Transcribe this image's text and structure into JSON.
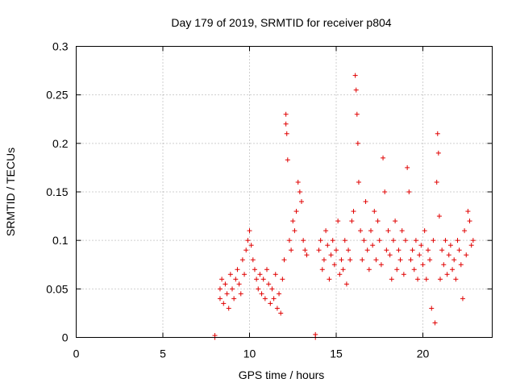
{
  "chart_data": {
    "type": "scatter",
    "title": "Day 179 of 2019, SRMTID for receiver p804",
    "xlabel": "GPS time / hours",
    "ylabel": "SRMTID / TECUs",
    "xlim": [
      0,
      24
    ],
    "ylim": [
      0,
      0.3
    ],
    "xticks": [
      0,
      5,
      10,
      15,
      20
    ],
    "xtick_labels": [
      "0",
      "5",
      "10",
      "15",
      "20"
    ],
    "yticks": [
      0,
      0.05,
      0.1,
      0.15,
      0.2,
      0.25,
      0.3
    ],
    "ytick_labels": [
      "0",
      "0.05",
      "0.1",
      "0.15",
      "0.2",
      "0.25",
      "0.3"
    ],
    "grid": true,
    "marker": "+",
    "color": "#e00000",
    "series": [
      {
        "name": "SRMTID",
        "points": [
          [
            8.0,
            0.0
          ],
          [
            8.0,
            0.002
          ],
          [
            13.8,
            0.0
          ],
          [
            13.8,
            0.003
          ],
          [
            8.3,
            0.05
          ],
          [
            8.3,
            0.04
          ],
          [
            8.4,
            0.06
          ],
          [
            8.5,
            0.035
          ],
          [
            8.6,
            0.055
          ],
          [
            8.7,
            0.045
          ],
          [
            8.8,
            0.03
          ],
          [
            8.9,
            0.065
          ],
          [
            9.0,
            0.05
          ],
          [
            9.1,
            0.04
          ],
          [
            9.2,
            0.06
          ],
          [
            9.3,
            0.07
          ],
          [
            9.4,
            0.055
          ],
          [
            9.5,
            0.045
          ],
          [
            9.6,
            0.08
          ],
          [
            9.7,
            0.065
          ],
          [
            9.8,
            0.09
          ],
          [
            9.9,
            0.1
          ],
          [
            10.0,
            0.11
          ],
          [
            10.1,
            0.095
          ],
          [
            10.2,
            0.08
          ],
          [
            10.3,
            0.07
          ],
          [
            10.4,
            0.06
          ],
          [
            10.5,
            0.05
          ],
          [
            10.6,
            0.065
          ],
          [
            10.7,
            0.045
          ],
          [
            10.8,
            0.06
          ],
          [
            10.9,
            0.04
          ],
          [
            11.0,
            0.07
          ],
          [
            11.1,
            0.055
          ],
          [
            11.2,
            0.035
          ],
          [
            11.3,
            0.05
          ],
          [
            11.4,
            0.04
          ],
          [
            11.5,
            0.065
          ],
          [
            11.6,
            0.03
          ],
          [
            11.7,
            0.045
          ],
          [
            11.8,
            0.025
          ],
          [
            11.9,
            0.06
          ],
          [
            12.0,
            0.08
          ],
          [
            12.1,
            0.23
          ],
          [
            12.1,
            0.22
          ],
          [
            12.15,
            0.21
          ],
          [
            12.2,
            0.183
          ],
          [
            12.3,
            0.1
          ],
          [
            12.4,
            0.09
          ],
          [
            12.5,
            0.12
          ],
          [
            12.6,
            0.11
          ],
          [
            12.7,
            0.13
          ],
          [
            12.8,
            0.16
          ],
          [
            12.9,
            0.15
          ],
          [
            13.0,
            0.14
          ],
          [
            13.1,
            0.1
          ],
          [
            13.2,
            0.09
          ],
          [
            13.3,
            0.085
          ],
          [
            14.0,
            0.09
          ],
          [
            14.1,
            0.1
          ],
          [
            14.2,
            0.07
          ],
          [
            14.3,
            0.08
          ],
          [
            14.4,
            0.11
          ],
          [
            14.5,
            0.095
          ],
          [
            14.6,
            0.06
          ],
          [
            14.7,
            0.085
          ],
          [
            14.8,
            0.1
          ],
          [
            14.9,
            0.075
          ],
          [
            15.0,
            0.09
          ],
          [
            15.1,
            0.12
          ],
          [
            15.2,
            0.065
          ],
          [
            15.3,
            0.08
          ],
          [
            15.4,
            0.07
          ],
          [
            15.5,
            0.1
          ],
          [
            15.6,
            0.055
          ],
          [
            15.7,
            0.09
          ],
          [
            15.8,
            0.08
          ],
          [
            15.9,
            0.12
          ],
          [
            16.0,
            0.13
          ],
          [
            16.1,
            0.27
          ],
          [
            16.15,
            0.255
          ],
          [
            16.2,
            0.23
          ],
          [
            16.25,
            0.2
          ],
          [
            16.3,
            0.16
          ],
          [
            16.4,
            0.11
          ],
          [
            16.5,
            0.08
          ],
          [
            16.6,
            0.1
          ],
          [
            16.7,
            0.14
          ],
          [
            16.8,
            0.09
          ],
          [
            16.9,
            0.07
          ],
          [
            17.0,
            0.11
          ],
          [
            17.1,
            0.095
          ],
          [
            17.2,
            0.13
          ],
          [
            17.3,
            0.08
          ],
          [
            17.4,
            0.12
          ],
          [
            17.5,
            0.1
          ],
          [
            17.6,
            0.075
          ],
          [
            17.7,
            0.185
          ],
          [
            17.8,
            0.15
          ],
          [
            17.9,
            0.09
          ],
          [
            18.0,
            0.11
          ],
          [
            18.1,
            0.085
          ],
          [
            18.2,
            0.06
          ],
          [
            18.3,
            0.1
          ],
          [
            18.4,
            0.12
          ],
          [
            18.5,
            0.07
          ],
          [
            18.6,
            0.09
          ],
          [
            18.7,
            0.08
          ],
          [
            18.8,
            0.11
          ],
          [
            18.9,
            0.065
          ],
          [
            19.0,
            0.1
          ],
          [
            19.1,
            0.175
          ],
          [
            19.2,
            0.15
          ],
          [
            19.3,
            0.08
          ],
          [
            19.4,
            0.09
          ],
          [
            19.5,
            0.07
          ],
          [
            19.6,
            0.1
          ],
          [
            19.7,
            0.06
          ],
          [
            19.8,
            0.085
          ],
          [
            19.9,
            0.095
          ],
          [
            20.0,
            0.075
          ],
          [
            20.1,
            0.11
          ],
          [
            20.2,
            0.06
          ],
          [
            20.3,
            0.09
          ],
          [
            20.4,
            0.08
          ],
          [
            20.5,
            0.03
          ],
          [
            20.6,
            0.1
          ],
          [
            20.7,
            0.015
          ],
          [
            20.8,
            0.16
          ],
          [
            20.85,
            0.21
          ],
          [
            20.9,
            0.19
          ],
          [
            20.95,
            0.125
          ],
          [
            21.0,
            0.06
          ],
          [
            21.1,
            0.09
          ],
          [
            21.2,
            0.075
          ],
          [
            21.3,
            0.1
          ],
          [
            21.4,
            0.065
          ],
          [
            21.5,
            0.085
          ],
          [
            21.6,
            0.095
          ],
          [
            21.7,
            0.07
          ],
          [
            21.8,
            0.08
          ],
          [
            21.9,
            0.06
          ],
          [
            22.0,
            0.1
          ],
          [
            22.1,
            0.09
          ],
          [
            22.2,
            0.075
          ],
          [
            22.3,
            0.04
          ],
          [
            22.4,
            0.11
          ],
          [
            22.5,
            0.085
          ],
          [
            22.6,
            0.13
          ],
          [
            22.7,
            0.12
          ],
          [
            22.8,
            0.095
          ],
          [
            22.9,
            0.1
          ]
        ]
      }
    ]
  }
}
